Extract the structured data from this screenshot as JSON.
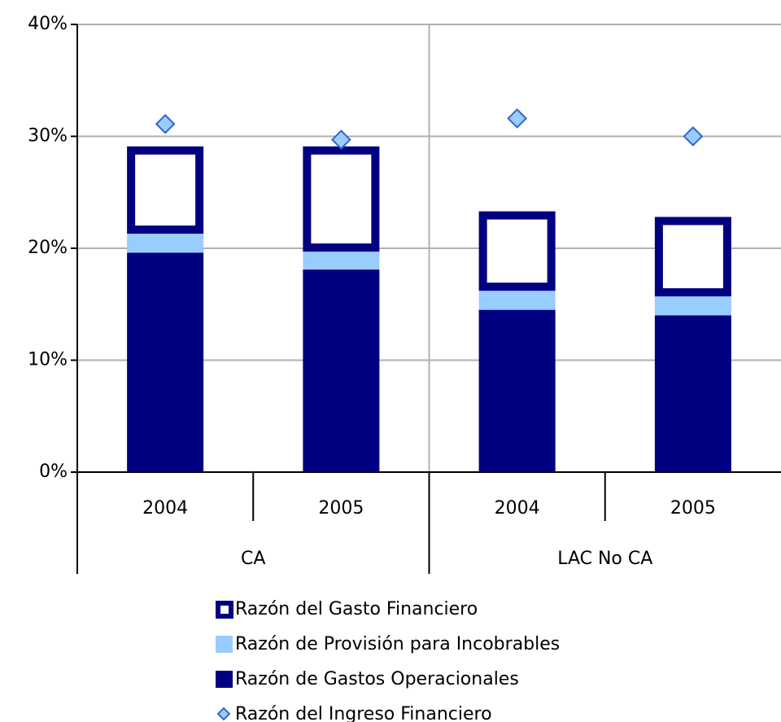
{
  "chart_data": {
    "type": "bar",
    "categories": [
      "2004",
      "2005",
      "2004",
      "2005"
    ],
    "groups": [
      "CA",
      "LAC No CA"
    ],
    "series": [
      {
        "name": "Razón del Gasto Financiero",
        "color": "#000080",
        "style": "outline",
        "values": [
          7.8,
          9.4,
          7.1,
          7.1
        ]
      },
      {
        "name": "Razón de Provisión para Incobrables",
        "color": "#99ccff",
        "values": [
          1.7,
          1.6,
          1.7,
          1.7
        ]
      },
      {
        "name": "Razón de Gastos Operacionales",
        "color": "#000080",
        "values": [
          19.6,
          18.1,
          14.5,
          14.0
        ]
      },
      {
        "name": "Razón del Ingreso Financiero",
        "color": "#99ccff",
        "type": "scatter",
        "values": [
          31.1,
          29.7,
          31.6,
          30.0
        ]
      }
    ],
    "stacked": true,
    "ylim": [
      0,
      40
    ],
    "yticks": [
      {
        "value": 0,
        "label": "0%"
      },
      {
        "value": 10,
        "label": "10%"
      },
      {
        "value": 20,
        "label": "20%"
      },
      {
        "value": 30,
        "label": "30%"
      },
      {
        "value": 40,
        "label": "40%"
      }
    ],
    "grid": true
  }
}
